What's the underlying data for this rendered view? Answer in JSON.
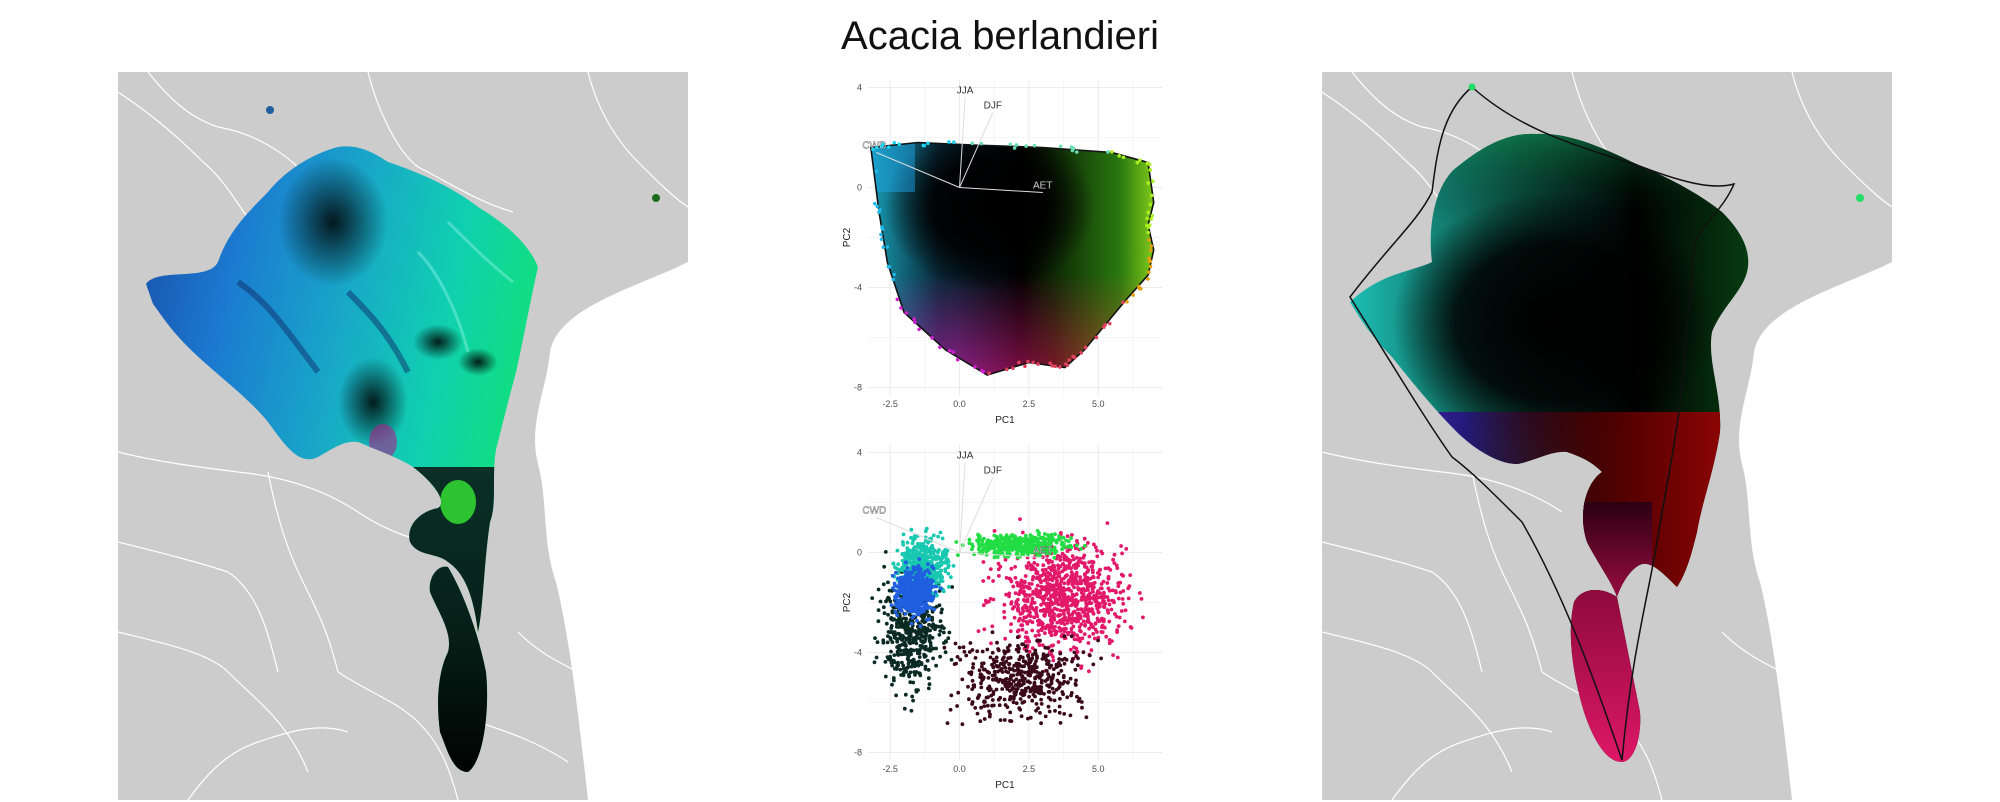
{
  "title": "Acacia berlandieri",
  "colors": {
    "land": "#cccccc",
    "borders": "#ffffff",
    "hull": "#111111",
    "teal": "#1fd0c8",
    "blue": "#1f5fe0",
    "green": "#22dd44",
    "red": "#dd1010",
    "magenta": "#e2186a",
    "black": "#000000"
  },
  "maps": [
    {
      "id": "left",
      "fill": "terrain-shaded climate colors"
    },
    {
      "id": "right",
      "fill": "smoothed climate colors with hull outline"
    }
  ],
  "chart_data": [
    {
      "type": "biplot",
      "panel": "pca-top",
      "xlabel": "PC1",
      "ylabel": "PC2",
      "xlim": [
        -3.3,
        7.3
      ],
      "ylim": [
        -8.3,
        4.3
      ],
      "xticks": [
        -2.5,
        0.0,
        2.5,
        5.0
      ],
      "xtick_labels": [
        "-2.5",
        "0.0",
        "2.5",
        "5.0"
      ],
      "yticks": [
        4,
        0,
        -4,
        -8
      ],
      "ytick_labels": [
        "4",
        "0",
        "-4",
        "-8"
      ],
      "origin": [
        0.0,
        0.0
      ],
      "arrows": [
        {
          "label": "JJA",
          "x": 0.2,
          "y": 3.6
        },
        {
          "label": "DJF",
          "x": 1.2,
          "y": 3.0
        },
        {
          "label": "CWD",
          "x": -3.0,
          "y": 1.4
        },
        {
          "label": "AET",
          "x": 3.0,
          "y": -0.2
        }
      ],
      "hull": [
        [
          -3.2,
          1.6
        ],
        [
          -1.5,
          1.8
        ],
        [
          0.5,
          1.7
        ],
        [
          3.0,
          1.6
        ],
        [
          5.5,
          1.4
        ],
        [
          6.8,
          1.0
        ],
        [
          7.0,
          -0.6
        ],
        [
          6.8,
          -1.5
        ],
        [
          7.0,
          -2.5
        ],
        [
          6.8,
          -3.5
        ],
        [
          6.0,
          -4.5
        ],
        [
          4.5,
          -6.5
        ],
        [
          3.8,
          -7.2
        ],
        [
          2.5,
          -7.0
        ],
        [
          1.0,
          -7.5
        ],
        [
          -0.5,
          -6.5
        ],
        [
          -2.0,
          -5.0
        ],
        [
          -2.6,
          -3.0
        ],
        [
          -2.9,
          -1.0
        ],
        [
          -3.2,
          1.6
        ]
      ],
      "point_colors": "bivariate color wheel (cyan top-left, black center, green right, orange-red lower-right, magenta bottom)"
    },
    {
      "type": "scatter",
      "panel": "pca-bottom",
      "xlabel": "PC1",
      "ylabel": "PC2",
      "xlim": [
        -3.3,
        7.3
      ],
      "ylim": [
        -8.3,
        4.3
      ],
      "xticks": [
        -2.5,
        0.0,
        2.5,
        5.0
      ],
      "xtick_labels": [
        "-2.5",
        "0.0",
        "2.5",
        "5.0"
      ],
      "yticks": [
        4,
        0,
        -4,
        -8
      ],
      "ytick_labels": [
        "4",
        "0",
        "-4",
        "-8"
      ],
      "origin": [
        0.0,
        0.0
      ],
      "arrows": [
        {
          "label": "JJA",
          "x": 0.2,
          "y": 3.6
        },
        {
          "label": "DJF",
          "x": 1.2,
          "y": 3.0
        },
        {
          "label": "CWD",
          "x": -3.0,
          "y": 1.4
        },
        {
          "label": "AET",
          "x": 3.0,
          "y": -0.2
        }
      ],
      "clusters": [
        {
          "color": "#e2186a",
          "cx": 3.6,
          "cy": -1.8,
          "sx": 1.6,
          "sy": 1.5
        },
        {
          "color": "#3a0a1a",
          "cx": 2.2,
          "cy": -5.0,
          "sx": 1.5,
          "sy": 1.1
        },
        {
          "color": "#0a2a22",
          "cx": -1.7,
          "cy": -3.2,
          "sx": 0.8,
          "sy": 1.6
        },
        {
          "color": "#18c8b0",
          "cx": -1.3,
          "cy": -0.5,
          "sx": 0.6,
          "sy": 0.8
        },
        {
          "color": "#22dd44",
          "cx": 2.2,
          "cy": 0.3,
          "sx": 1.2,
          "sy": 0.3
        },
        {
          "color": "#1f5fe0",
          "cx": -1.6,
          "cy": -1.6,
          "sx": 0.5,
          "sy": 0.7
        }
      ]
    }
  ]
}
